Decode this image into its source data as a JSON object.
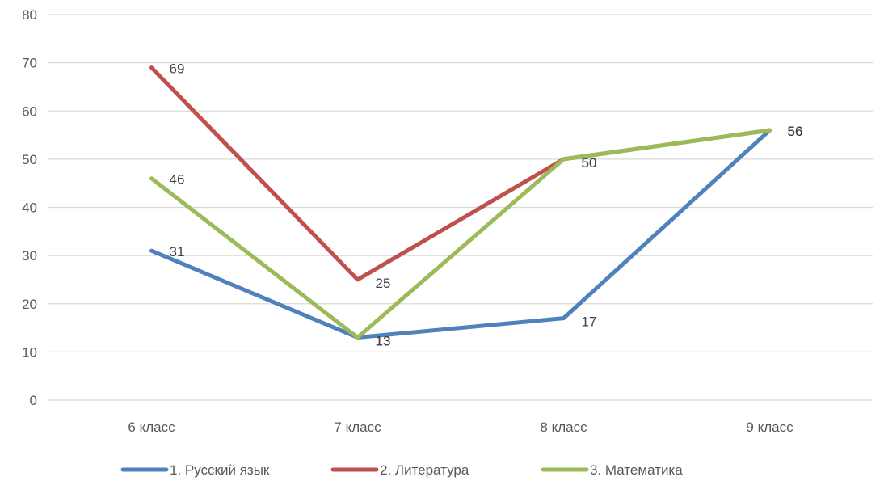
{
  "chart_data": {
    "type": "line",
    "categories": [
      "6 класс",
      "7 класс",
      "8 класс",
      "9 класс"
    ],
    "ylim": [
      0,
      80
    ],
    "yticks": [
      0,
      10,
      20,
      30,
      40,
      50,
      60,
      70,
      80
    ],
    "grid": true,
    "legend_position": "bottom",
    "series": [
      {
        "name": "1.        Русский язык",
        "color": "#4F81BD",
        "values": [
          31,
          13,
          17,
          56
        ]
      },
      {
        "name": "2.        Литература",
        "color": "#C0504D",
        "values": [
          69,
          25,
          50,
          56
        ]
      },
      {
        "name": "3.        Математика",
        "color": "#9BBB59",
        "values": [
          46,
          13,
          50,
          56
        ]
      }
    ]
  }
}
